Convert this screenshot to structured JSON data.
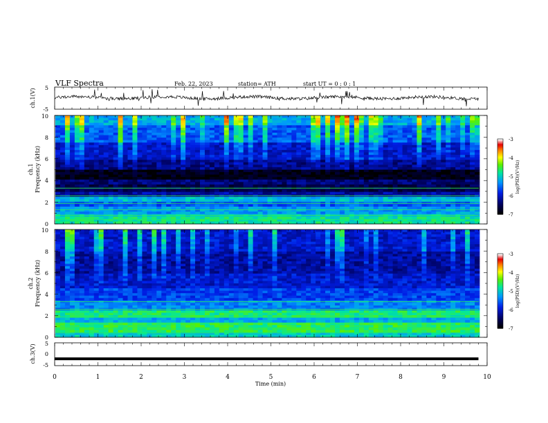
{
  "header": {
    "title": "VLF  Spectra",
    "date": "Feb. 22, 2023",
    "station": "station= ATH",
    "start": "start  UT  =    0  : 0   : 1"
  },
  "colors": {
    "trace": "#000000",
    "axis": "#000000"
  },
  "chart_data": [
    {
      "type": "line",
      "name": "ch1-waveform",
      "ylabel": "ch.1(V)",
      "ylim": [
        -5,
        5
      ],
      "yticks": [
        "5",
        "-5"
      ],
      "xlim": [
        0,
        10
      ],
      "x_extent": [
        0,
        9.8
      ],
      "baseline": 0.2,
      "description": "noisy signal around 0 V with sharp spikes"
    },
    {
      "type": "heatmap",
      "name": "ch1-spectrogram",
      "ylabel": "Frequency (kHz)",
      "ylabel_prefix": "ch.1",
      "ylim": [
        0,
        10
      ],
      "yticks": [
        "0",
        "2",
        "4",
        "6",
        "8",
        "10"
      ],
      "xlim": [
        0,
        10
      ],
      "colorbar": {
        "label": "log(PSD)(V²/Hz)",
        "range": [
          -7,
          -3
        ],
        "ticks": [
          "-3",
          "-4",
          "-5",
          "-6",
          "-7"
        ]
      },
      "profile": [
        [
          0,
          0.6,
          -4.8
        ],
        [
          0.5,
          1.0,
          -5.0
        ],
        [
          1.0,
          1.6,
          -5.3
        ],
        [
          1.6,
          2.0,
          -5.6
        ],
        [
          2.0,
          2.4,
          -5.1
        ],
        [
          2.4,
          3.0,
          -6.2
        ],
        [
          3.0,
          3.6,
          -6.6
        ],
        [
          3.6,
          4.0,
          -6.4
        ],
        [
          4.0,
          5.0,
          -6.9
        ],
        [
          5.0,
          6.0,
          -6.3
        ],
        [
          6.0,
          7.5,
          -6.0
        ],
        [
          7.5,
          9.0,
          -5.6
        ],
        [
          9.0,
          10.0,
          -5.2
        ]
      ]
    },
    {
      "type": "heatmap",
      "name": "ch2-spectrogram",
      "ylabel": "Frequency (kHz)",
      "ylabel_prefix": "ch.2",
      "ylim": [
        0,
        10
      ],
      "yticks": [
        "0",
        "2",
        "4",
        "6",
        "8",
        "10"
      ],
      "xlim": [
        0,
        10
      ],
      "colorbar": {
        "label": "log(PSD)(V²/Hz)",
        "range": [
          -7,
          -3
        ],
        "ticks": [
          "-3",
          "-4",
          "-5",
          "-6",
          "-7"
        ]
      },
      "profile": [
        [
          0,
          0.5,
          -5.0
        ],
        [
          0.5,
          1.4,
          -4.6
        ],
        [
          1.4,
          1.8,
          -5.2
        ],
        [
          1.8,
          2.4,
          -4.7
        ],
        [
          2.4,
          3.5,
          -5.4
        ],
        [
          3.5,
          4.5,
          -5.7
        ],
        [
          4.5,
          6.0,
          -6.0
        ],
        [
          6.0,
          8.0,
          -6.2
        ],
        [
          8.0,
          10.0,
          -6.0
        ]
      ]
    },
    {
      "type": "line",
      "name": "ch3-waveform",
      "ylabel": "ch.3(V)",
      "ylim": [
        -5,
        5
      ],
      "yticks": [
        "5",
        "0",
        "-5"
      ],
      "xlim": [
        0,
        10
      ],
      "x_extent": [
        0,
        9.8
      ],
      "baseline": -2.0,
      "xlabel": "Time  (min)",
      "xticks": [
        "0",
        "1",
        "2",
        "3",
        "4",
        "5",
        "6",
        "7",
        "8",
        "9",
        "10"
      ]
    }
  ]
}
